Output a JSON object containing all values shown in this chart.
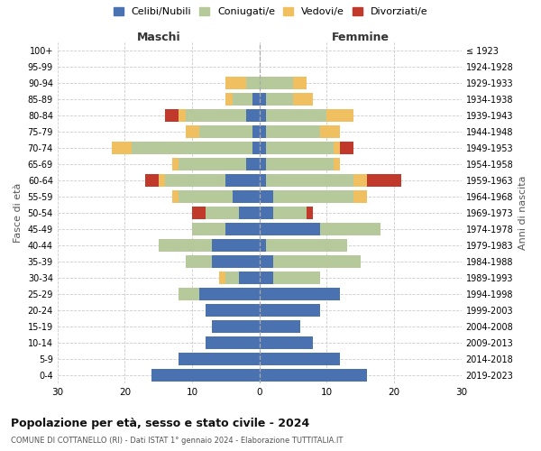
{
  "age_groups": [
    "100+",
    "95-99",
    "90-94",
    "85-89",
    "80-84",
    "75-79",
    "70-74",
    "65-69",
    "60-64",
    "55-59",
    "50-54",
    "45-49",
    "40-44",
    "35-39",
    "30-34",
    "25-29",
    "20-24",
    "15-19",
    "10-14",
    "5-9",
    "0-4"
  ],
  "birth_years": [
    "≤ 1923",
    "1924-1928",
    "1929-1933",
    "1934-1938",
    "1939-1943",
    "1944-1948",
    "1949-1953",
    "1954-1958",
    "1959-1963",
    "1964-1968",
    "1969-1973",
    "1974-1978",
    "1979-1983",
    "1984-1988",
    "1989-1993",
    "1994-1998",
    "1999-2003",
    "2004-2008",
    "2009-2013",
    "2014-2018",
    "2019-2023"
  ],
  "maschi_celibe": [
    0,
    0,
    0,
    1,
    2,
    1,
    1,
    2,
    5,
    4,
    3,
    5,
    7,
    7,
    3,
    9,
    8,
    7,
    8,
    12,
    16
  ],
  "maschi_coniugato": [
    0,
    0,
    2,
    3,
    9,
    8,
    18,
    10,
    9,
    8,
    5,
    5,
    8,
    4,
    2,
    3,
    0,
    0,
    0,
    0,
    0
  ],
  "maschi_vedovo": [
    0,
    0,
    3,
    1,
    1,
    2,
    3,
    1,
    1,
    1,
    0,
    0,
    0,
    0,
    1,
    0,
    0,
    0,
    0,
    0,
    0
  ],
  "maschi_divorziato": [
    0,
    0,
    0,
    0,
    2,
    0,
    0,
    0,
    2,
    0,
    2,
    0,
    0,
    0,
    0,
    0,
    0,
    0,
    0,
    0,
    0
  ],
  "femmine_nubile": [
    0,
    0,
    0,
    1,
    1,
    1,
    1,
    1,
    1,
    2,
    2,
    9,
    1,
    2,
    2,
    12,
    9,
    6,
    8,
    12,
    16
  ],
  "femmine_coniugata": [
    0,
    0,
    5,
    4,
    9,
    8,
    10,
    10,
    13,
    12,
    5,
    9,
    12,
    13,
    7,
    0,
    0,
    0,
    0,
    0,
    0
  ],
  "femmine_vedova": [
    0,
    0,
    2,
    3,
    4,
    3,
    1,
    1,
    2,
    2,
    0,
    0,
    0,
    0,
    0,
    0,
    0,
    0,
    0,
    0,
    0
  ],
  "femmine_divorziata": [
    0,
    0,
    0,
    0,
    0,
    0,
    2,
    0,
    5,
    0,
    1,
    0,
    0,
    0,
    0,
    0,
    0,
    0,
    0,
    0,
    0
  ],
  "colors": {
    "celibe": "#4a72b0",
    "coniugato": "#b5c99a",
    "vedovo": "#f0c060",
    "divorziato": "#c0392b"
  },
  "title": "Popolazione per età, sesso e stato civile - 2024",
  "subtitle": "COMUNE DI COTTANELLO (RI) - Dati ISTAT 1° gennaio 2024 - Elaborazione TUTTITALIA.IT",
  "xlabel_left": "Maschi",
  "xlabel_right": "Femmine",
  "ylabel_left": "Fasce di età",
  "ylabel_right": "Anni di nascita",
  "legend_labels": [
    "Celibi/Nubili",
    "Coniugati/e",
    "Vedovi/e",
    "Divorziati/e"
  ],
  "xlim": 30
}
